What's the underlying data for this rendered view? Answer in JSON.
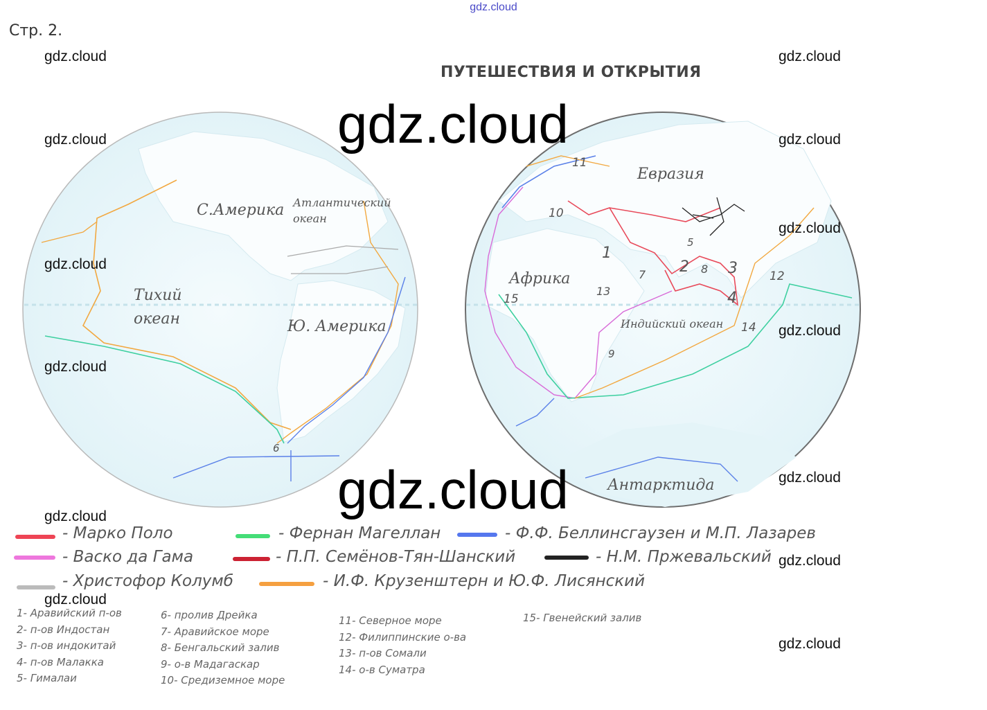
{
  "header": {
    "site": "gdz.cloud",
    "page": "Стр. 2.",
    "title": "ПУТЕШЕСТВИЯ И ОТКРЫТИЯ"
  },
  "watermarks": {
    "small": "gdz.cloud",
    "big": "gdz.cloud"
  },
  "map_labels": {
    "n_america": "С.Америка",
    "atlantic_1": "Атлантический",
    "atlantic_2": "океан",
    "pacific_1": "Тихий",
    "pacific_2": "океан",
    "s_america": "Ю. Америка",
    "eurasia": "Евразия",
    "africa": "Африка",
    "indian": "Индийский океан",
    "antarctica": "Антарктида"
  },
  "map_numbers": [
    "1",
    "2",
    "3",
    "4",
    "5",
    "6",
    "7",
    "8",
    "9",
    "10",
    "11",
    "12",
    "13",
    "14",
    "15"
  ],
  "legend": [
    {
      "label": "- Марко Поло",
      "color": "#ee4455"
    },
    {
      "label": "- Фернан Магеллан",
      "color": "#44dd77"
    },
    {
      "label": "- Ф.Ф. Беллинсгаузен и М.П. Лазарев",
      "color": "#5577ee"
    },
    {
      "label": "- Васко да Гама",
      "color": "#ee77dd"
    },
    {
      "label": "- П.П. Семёнов-Тян-Шанский",
      "color": "#cc2233"
    },
    {
      "label": "- Н.М. Пржевальский",
      "color": "#222222"
    },
    {
      "label": "- Христофор Колумб",
      "color": "#bbbbbb"
    },
    {
      "label": "- И.Ф. Крузенштерн и Ю.Ф. Лисянский",
      "color": "#f5a040"
    }
  ],
  "notes": {
    "col1": [
      "1- Аравийский п-ов",
      "2- п-ов Индостан",
      "3- п-ов индокитай",
      "4- п-ов Малакка",
      "5- Гималаи"
    ],
    "col2": [
      "6- пролив Дрейка",
      "7- Аравийское море",
      "8- Бенгальский залив",
      "9- о-в Мадагаскар",
      "10- Средиземное море"
    ],
    "col3": [
      "11- Северное море",
      "12- Филиппинские о-ва",
      "13- п-ов Сомали",
      "14- о-в Суматра"
    ],
    "col4": [
      "15- Гвенейский залив"
    ]
  }
}
